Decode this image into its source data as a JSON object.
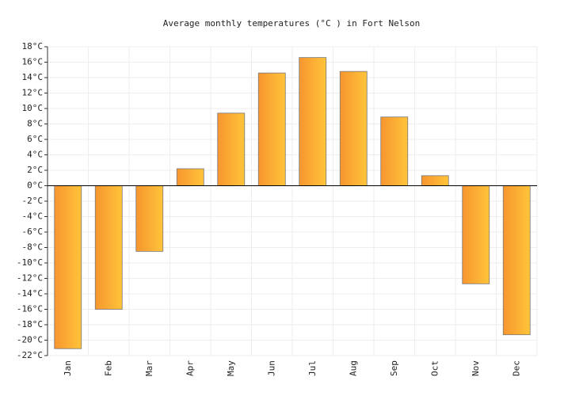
{
  "chart_data": {
    "type": "bar",
    "title": "Average monthly temperatures (°C ) in Fort Nelson",
    "categories": [
      "Jan",
      "Feb",
      "Mar",
      "Apr",
      "May",
      "Jun",
      "Jul",
      "Aug",
      "Sep",
      "Oct",
      "Nov",
      "Dec"
    ],
    "values": [
      -21.1,
      -16,
      -8.5,
      2.2,
      9.4,
      14.6,
      16.6,
      14.8,
      8.9,
      1.3,
      -12.7,
      -19.3
    ],
    "color": [
      "#f7962f",
      "#ffc43a"
    ],
    "ylim": [
      -22,
      18
    ],
    "yticks": [
      {
        "value": -22,
        "label": "-22°C"
      },
      {
        "value": -20,
        "label": "-20°C"
      },
      {
        "value": -18,
        "label": "-18°C"
      },
      {
        "value": -16,
        "label": "-16°C"
      },
      {
        "value": -14,
        "label": "-14°C"
      },
      {
        "value": -12,
        "label": "-12°C"
      },
      {
        "value": -10,
        "label": "-10°C"
      },
      {
        "value": -8,
        "label": "-8°C"
      },
      {
        "value": -6,
        "label": "-6°C"
      },
      {
        "value": -4,
        "label": "-4°C"
      },
      {
        "value": -2,
        "label": "-2°C"
      },
      {
        "value": 0,
        "label": "0°C"
      },
      {
        "value": 2,
        "label": "2°C"
      },
      {
        "value": 4,
        "label": "4°C"
      },
      {
        "value": 6,
        "label": "6°C"
      },
      {
        "value": 8,
        "label": "8°C"
      },
      {
        "value": 10,
        "label": "10°C"
      },
      {
        "value": 12,
        "label": "12°C"
      },
      {
        "value": 14,
        "label": "14°C"
      },
      {
        "value": 16,
        "label": "16°C"
      },
      {
        "value": 18,
        "label": "18°C"
      }
    ],
    "grid": true
  }
}
